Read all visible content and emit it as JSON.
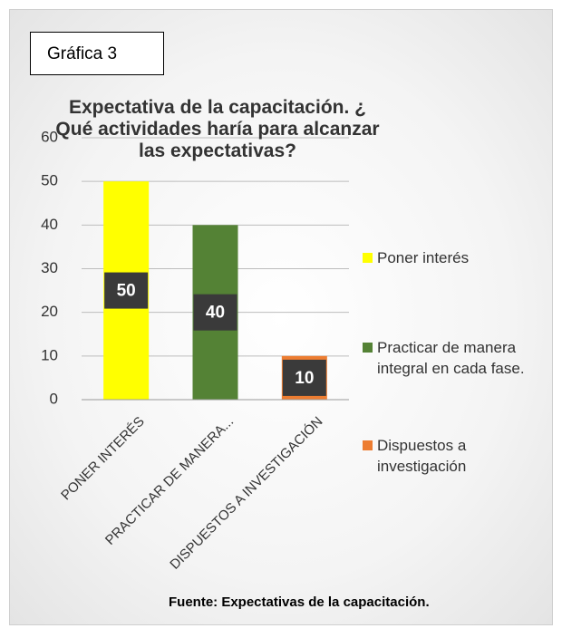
{
  "label": "Gráfica 3",
  "chart_data": {
    "type": "bar",
    "title": "Expectativa de la capacitación. ¿ Qué actividades haría para alcanzar las expectativas?",
    "categories": [
      "PONER INTERÉS",
      "PRACTICAR DE MANERA...",
      "DISPUESTOS A INVESTIGACIÓN"
    ],
    "legend_labels": [
      "Poner interés",
      "Practicar de manera integral en cada fase.",
      "Dispuestos a investigación"
    ],
    "values": [
      50,
      40,
      10
    ],
    "colors": [
      "#ffff00",
      "#548235",
      "#ed7d31"
    ],
    "ylim": [
      0,
      60
    ],
    "yticks": [
      0,
      10,
      20,
      30,
      40,
      50,
      60
    ],
    "grid": true,
    "legend": "right"
  },
  "source": "Fuente: Expectativas de la capacitación."
}
